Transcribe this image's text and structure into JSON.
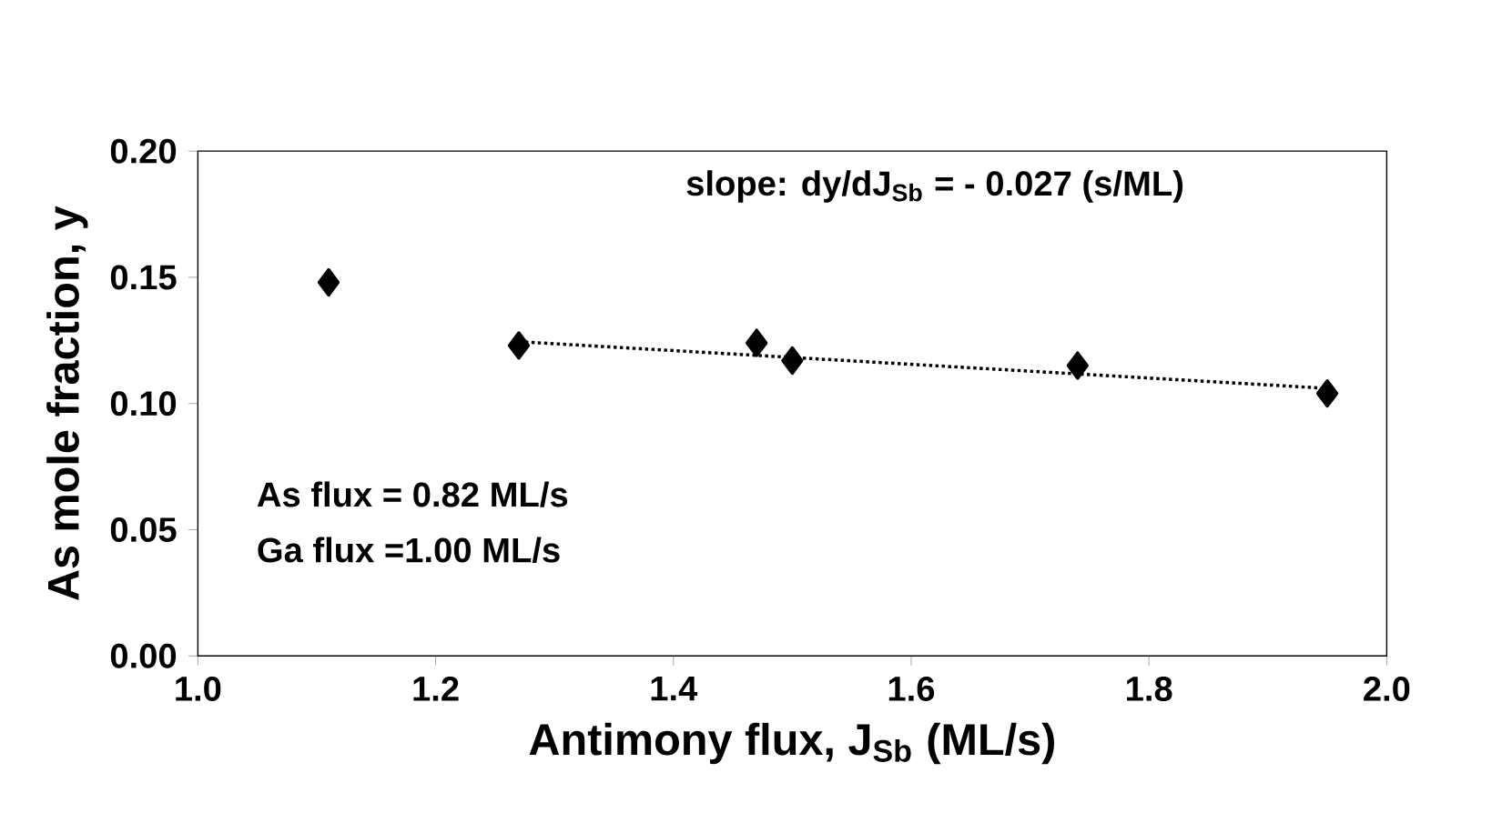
{
  "chart_data": {
    "type": "scatter",
    "xlabel": "Antimony flux, J$_{Sb}$ (ML/s)",
    "ylabel": "As mole fraction, y",
    "xlim": [
      1.0,
      2.0
    ],
    "ylim": [
      0,
      0.2
    ],
    "xticks": [
      {
        "value": 1.0,
        "label": "1.0"
      },
      {
        "value": 1.2,
        "label": "1.2"
      },
      {
        "value": 1.4,
        "label": "1.4"
      },
      {
        "value": 1.6,
        "label": "1.6"
      },
      {
        "value": 1.8,
        "label": "1.8"
      },
      {
        "value": 2.0,
        "label": "2.0"
      }
    ],
    "yticks": [
      {
        "value": 0,
        "label": "0.00"
      },
      {
        "value": 0.05,
        "label": "0.05"
      },
      {
        "value": 0.1,
        "label": "0.10"
      },
      {
        "value": 0.15,
        "label": "0.15"
      },
      {
        "value": 0.2,
        "label": "0.20"
      }
    ],
    "grid": false,
    "marker": "diamond",
    "series": [
      {
        "x": [
          1.11,
          1.27,
          1.47,
          1.5,
          1.74,
          1.95
        ],
        "values": [
          0.148,
          0.123,
          0.124,
          0.117,
          0.115,
          0.104
        ],
        "color": "#000000"
      },
      {
        "type": "line",
        "line_style": "dotted",
        "marker": "none",
        "x": [
          1.27,
          1.95
        ],
        "values": [
          0.1245,
          0.106
        ],
        "color": "#000000"
      }
    ],
    "annotations": [
      "slope: dy/dJ$_{Sb}$ = - 0.027 (s/ML)",
      "As flux = 0.82 ML/s",
      "Ga flux =1.00 ML/s"
    ]
  }
}
